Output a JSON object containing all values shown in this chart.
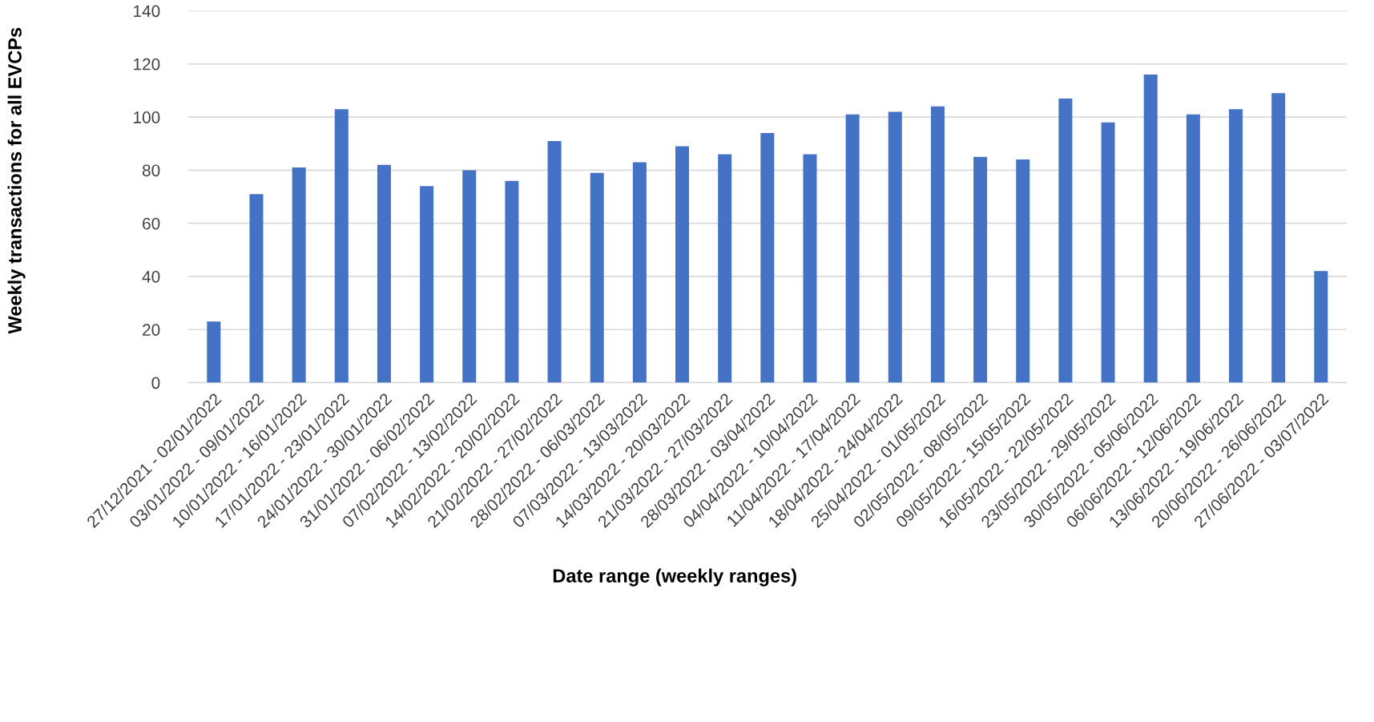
{
  "chart_data": {
    "type": "bar",
    "xlabel": "Date range (weekly ranges)",
    "ylabel": "Weekly transactions for all EVCPs",
    "categories": [
      "27/12/2021 - 02/01/2022",
      "03/01/2022 - 09/01/2022",
      "10/01/2022 - 16/01/2022",
      "17/01/2022 - 23/01/2022",
      "24/01/2022 - 30/01/2022",
      "31/01/2022 - 06/02/2022",
      "07/02/2022 - 13/02/2022",
      "14/02/2022 - 20/02/2022",
      "21/02/2022 - 27/02/2022",
      "28/02/2022 - 06/03/2022",
      "07/03/2022 - 13/03/2022",
      "14/03/2022 - 20/03/2022",
      "21/03/2022 - 27/03/2022",
      "28/03/2022 - 03/04/2022",
      "04/04/2022 - 10/04/2022",
      "11/04/2022 - 17/04/2022",
      "18/04/2022 - 24/04/2022",
      "25/04/2022 - 01/05/2022",
      "02/05/2022 - 08/05/2022",
      "09/05/2022 - 15/05/2022",
      "16/05/2022 - 22/05/2022",
      "23/05/2022 - 29/05/2022",
      "30/05/2022 - 05/06/2022",
      "06/06/2022 - 12/06/2022",
      "13/06/2022 - 19/06/2022",
      "20/06/2022 - 26/06/2022",
      "27/06/2022 - 03/07/2022"
    ],
    "values": [
      23,
      71,
      81,
      103,
      82,
      74,
      80,
      76,
      91,
      79,
      83,
      89,
      86,
      94,
      86,
      101,
      102,
      104,
      85,
      84,
      107,
      98,
      116,
      101,
      103,
      109,
      42
    ],
    "color": "#4472c4",
    "ylim": [
      0,
      140
    ],
    "yticks": [
      0,
      20,
      40,
      60,
      80,
      100,
      120,
      140
    ],
    "grid": "y"
  }
}
